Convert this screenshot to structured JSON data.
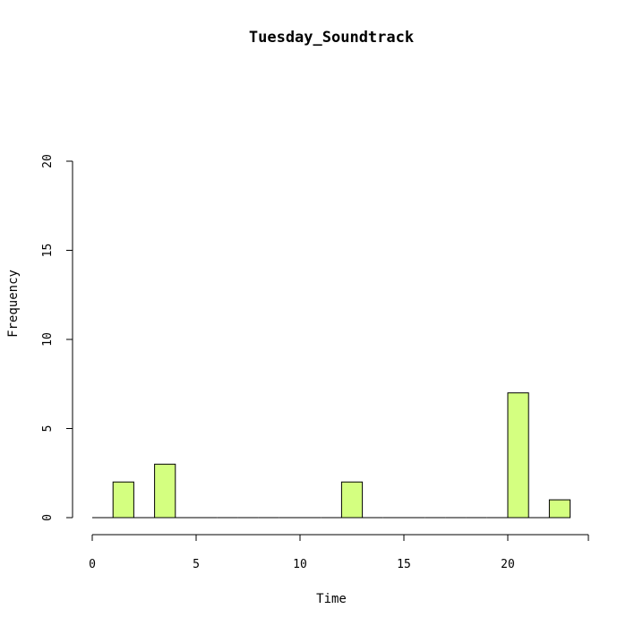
{
  "chart_data": {
    "type": "bar",
    "title": "Tuesday_Soundtrack",
    "xlabel": "Time",
    "ylabel": "Frequency",
    "xlim": [
      0,
      24
    ],
    "ylim": [
      0,
      20
    ],
    "x_ticks": [
      "0",
      "5",
      "10",
      "15",
      "20"
    ],
    "y_ticks": [
      "0",
      "5",
      "10",
      "15",
      "20"
    ],
    "bar_color": "#d4ff80",
    "bins": [
      {
        "start": 0,
        "end": 1,
        "value": 0
      },
      {
        "start": 1,
        "end": 2,
        "value": 2
      },
      {
        "start": 2,
        "end": 3,
        "value": 0
      },
      {
        "start": 3,
        "end": 4,
        "value": 3
      },
      {
        "start": 4,
        "end": 5,
        "value": 0
      },
      {
        "start": 5,
        "end": 6,
        "value": 0
      },
      {
        "start": 6,
        "end": 7,
        "value": 0
      },
      {
        "start": 7,
        "end": 8,
        "value": 0
      },
      {
        "start": 8,
        "end": 9,
        "value": 0
      },
      {
        "start": 9,
        "end": 10,
        "value": 0
      },
      {
        "start": 10,
        "end": 11,
        "value": 0
      },
      {
        "start": 11,
        "end": 12,
        "value": 0
      },
      {
        "start": 12,
        "end": 13,
        "value": 2
      },
      {
        "start": 13,
        "end": 14,
        "value": 0
      },
      {
        "start": 14,
        "end": 15,
        "value": 0
      },
      {
        "start": 15,
        "end": 16,
        "value": 0
      },
      {
        "start": 16,
        "end": 17,
        "value": 0
      },
      {
        "start": 17,
        "end": 18,
        "value": 0
      },
      {
        "start": 18,
        "end": 19,
        "value": 0
      },
      {
        "start": 19,
        "end": 20,
        "value": 0
      },
      {
        "start": 20,
        "end": 21,
        "value": 7
      },
      {
        "start": 21,
        "end": 22,
        "value": 0
      },
      {
        "start": 22,
        "end": 23,
        "value": 1
      }
    ],
    "grid": false,
    "legend": "none"
  }
}
